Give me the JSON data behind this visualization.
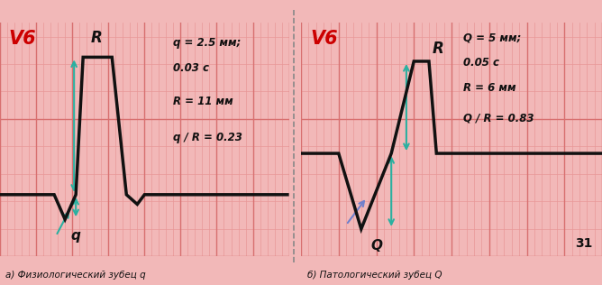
{
  "bg_color": "#f2b8b8",
  "grid_major_color": "#d87070",
  "grid_minor_color": "#e89898",
  "ecg_color": "#111111",
  "ecg_linewidth": 2.5,
  "arrow_color": "#2ab0a0",
  "arrow_color2": "#7080cc",
  "divider_color": "#888888",
  "left_label": "V6",
  "left_label_color": "#cc0000",
  "left_sublabel": "а) Физиологический зубец q",
  "left_text1": "q = 2.5 мм;",
  "left_text2": "0.03 с",
  "left_text3": "R = 11 мм",
  "left_text4": "q / R = 0.23",
  "left_q_label": "q",
  "left_R_label": "R",
  "right_label": "V6",
  "right_label_color": "#cc0000",
  "right_sublabel": "б) Патологический зубец Q",
  "right_text1": "Q = 5 мм;",
  "right_text2": "0.05 с",
  "right_text3": "R = 6 мм",
  "right_text4": "Q / R = 0.83",
  "right_Q_label": "Q",
  "right_R_label": "R",
  "page_number": "31",
  "left_ecg_x": [
    0.0,
    1.5,
    1.8,
    2.1,
    2.3,
    3.1,
    3.5,
    3.8,
    4.0,
    4.1,
    4.5,
    8.0
  ],
  "left_ecg_y": [
    0.0,
    0.0,
    -0.18,
    0.0,
    1.0,
    1.0,
    0.0,
    -0.07,
    0.0,
    0.0,
    0.0,
    0.0
  ],
  "right_ecg_x": [
    0.0,
    1.0,
    1.6,
    2.4,
    3.0,
    3.4,
    3.6,
    4.1,
    8.0
  ],
  "right_ecg_y": [
    0.0,
    0.0,
    -0.55,
    0.0,
    0.67,
    0.67,
    0.0,
    0.0,
    0.0
  ]
}
